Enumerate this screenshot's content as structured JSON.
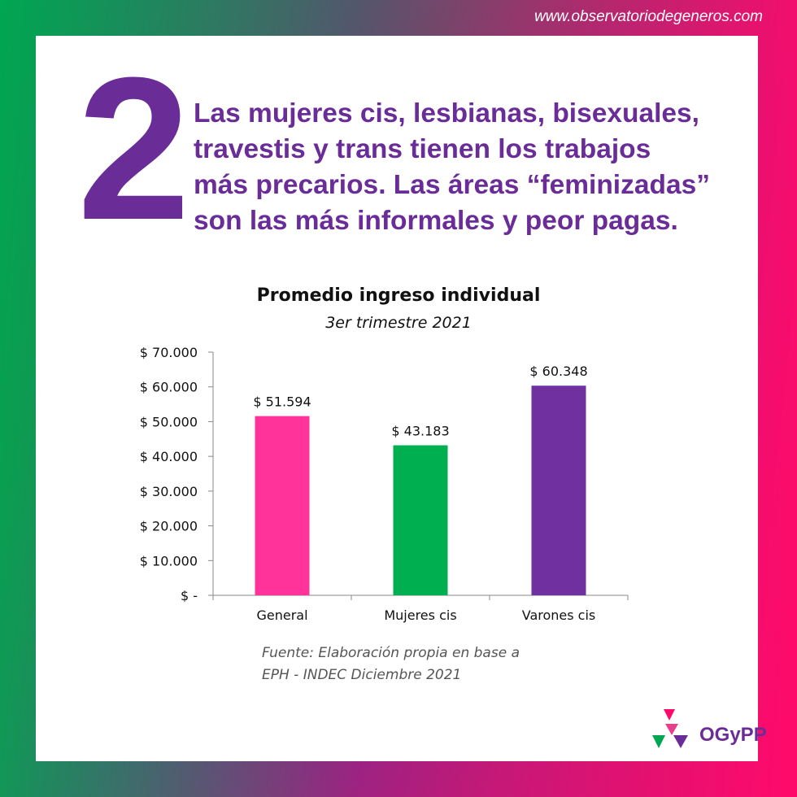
{
  "site_url": "www.observatoriodegeneros.com",
  "big_number": "2",
  "headline_lines": [
    "Las mujeres cis, lesbianas, bisexuales,",
    "travestis y trans tienen los trabajos",
    "más precarios. Las áreas “feminizadas”",
    "son las más informales y peor pagas."
  ],
  "chart_data": {
    "type": "bar",
    "title": "Promedio ingreso individual",
    "subtitle": "3er trimestre 2021",
    "categories": [
      "General",
      "Mujeres cis",
      "Varones cis"
    ],
    "values": [
      51594,
      43183,
      60348
    ],
    "value_labels": [
      "$ 51.594",
      "$ 43.183",
      "$ 60.348"
    ],
    "colors": [
      "#ff3399",
      "#00b050",
      "#7030a0"
    ],
    "ylim": [
      0,
      70000
    ],
    "yticks": [
      0,
      10000,
      20000,
      30000,
      40000,
      50000,
      60000,
      70000
    ],
    "ytick_labels": [
      "$ -",
      "$ 10.000",
      "$ 20.000",
      "$ 30.000",
      "$ 40.000",
      "$ 50.000",
      "$ 60.000",
      "$ 70.000"
    ],
    "grid": false,
    "legend": "none"
  },
  "source_lines": [
    "Fuente: Elaboración propia en base a",
    "EPH - INDEC Diciembre 2021"
  ],
  "logo_text": "OGyPP",
  "colors": {
    "purple": "#6a2d98",
    "pink": "#ff0a6a",
    "green": "#00a651"
  }
}
